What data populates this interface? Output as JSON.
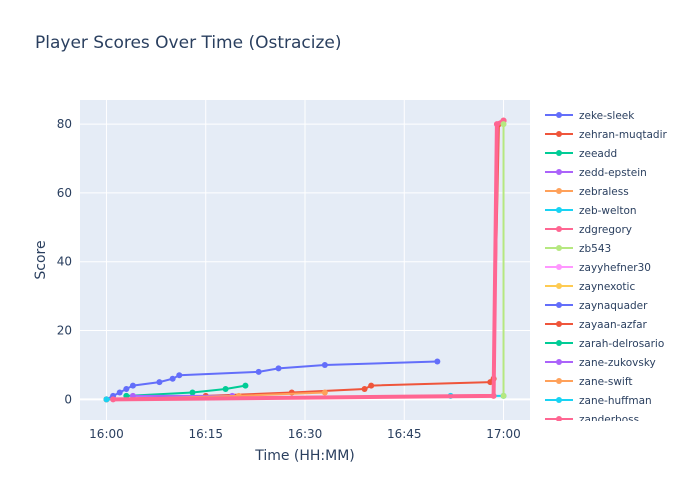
{
  "chart_data": {
    "type": "line",
    "title": "Player Scores Over Time (Ostracize)",
    "xlabel": "Time (HH:MM)",
    "ylabel": "Score",
    "x_ticks": [
      "16:00",
      "16:15",
      "16:30",
      "16:45",
      "17:00"
    ],
    "y_ticks": [
      0,
      20,
      40,
      60,
      80
    ],
    "xlim": [
      "15:56",
      "17:04"
    ],
    "ylim": [
      -6,
      87
    ],
    "grid": true,
    "legend_position": "right",
    "series": [
      {
        "name": "zeke-sleek",
        "color": "#636efa",
        "points": [
          [
            "16:00",
            0
          ],
          [
            "16:01",
            1
          ],
          [
            "16:02",
            2
          ],
          [
            "16:03",
            3
          ],
          [
            "16:04",
            4
          ],
          [
            "16:08",
            5
          ],
          [
            "16:10",
            6
          ],
          [
            "16:11",
            7
          ],
          [
            "16:23",
            8
          ],
          [
            "16:26",
            9
          ],
          [
            "16:33",
            10
          ],
          [
            "16:50",
            11
          ]
        ]
      },
      {
        "name": "zehran-muqtadir",
        "color": "#EF553B",
        "points": [
          [
            "16:00",
            0
          ],
          [
            "16:15",
            1
          ],
          [
            "16:28",
            2
          ],
          [
            "16:39",
            3
          ],
          [
            "16:40",
            4
          ],
          [
            "16:58",
            5
          ],
          [
            "16:58.5",
            6
          ],
          [
            "16:59.3",
            80
          ],
          [
            "17:00",
            81
          ]
        ]
      },
      {
        "name": "zeeadd",
        "color": "#00cc96",
        "points": [
          [
            "16:03",
            1
          ],
          [
            "16:13",
            2
          ],
          [
            "16:18",
            3
          ],
          [
            "16:21",
            4
          ]
        ]
      },
      {
        "name": "zedd-epstein",
        "color": "#ab63fa",
        "points": [
          [
            "16:04",
            1
          ],
          [
            "16:19",
            1
          ]
        ]
      },
      {
        "name": "zebraless",
        "color": "#FFA15A",
        "points": [
          [
            "16:00",
            0
          ],
          [
            "16:20",
            1
          ],
          [
            "16:33",
            2
          ]
        ]
      },
      {
        "name": "zeb-welton",
        "color": "#19d3f3",
        "points": [
          [
            "16:00",
            0
          ],
          [
            "16:52",
            1
          ],
          [
            "17:00",
            1
          ]
        ]
      },
      {
        "name": "zdgregory",
        "color": "#FF6692",
        "points": [
          [
            "16:01",
            0
          ],
          [
            "16:58.5",
            1
          ],
          [
            "16:59",
            80
          ],
          [
            "17:00",
            81
          ]
        ]
      },
      {
        "name": "zb543",
        "color": "#B6E880",
        "points": [
          [
            "17:00",
            1
          ],
          [
            "17:00",
            80
          ]
        ]
      },
      {
        "name": "zayyhefner30",
        "color": "#FF97FF",
        "points": []
      },
      {
        "name": "zaynexotic",
        "color": "#FECB52",
        "points": []
      },
      {
        "name": "zaynaquader",
        "color": "#636efa",
        "points": []
      },
      {
        "name": "zayaan-azfar",
        "color": "#EF553B",
        "points": []
      },
      {
        "name": "zarah-delrosario",
        "color": "#00cc96",
        "points": []
      },
      {
        "name": "zane-zukovsky",
        "color": "#ab63fa",
        "points": []
      },
      {
        "name": "zane-swift",
        "color": "#FFA15A",
        "points": []
      },
      {
        "name": "zane-huffman",
        "color": "#19d3f3",
        "points": []
      },
      {
        "name": "zanderboss",
        "color": "#FF6692",
        "points": []
      }
    ]
  }
}
